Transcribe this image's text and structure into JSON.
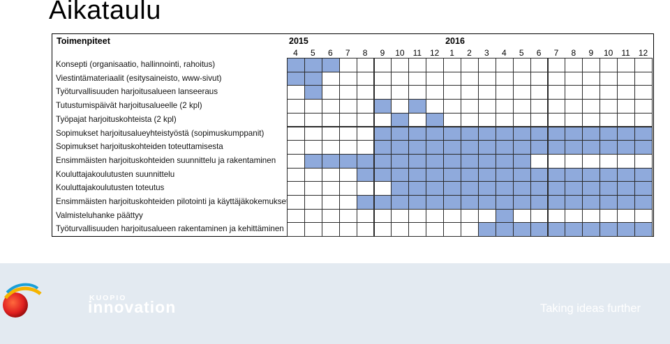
{
  "page": {
    "title": "Aikataulu"
  },
  "gantt": {
    "task_header": "Toimenpiteet",
    "years": [
      {
        "label": "2015",
        "start_month_index": 0
      },
      {
        "label": "2016",
        "start_month_index": 9
      }
    ],
    "months": [
      "4",
      "5",
      "6",
      "7",
      "8",
      "9",
      "10",
      "11",
      "12",
      "1",
      "2",
      "3",
      "4",
      "5",
      "6",
      "7",
      "8",
      "9",
      "10",
      "11",
      "12"
    ],
    "rows": [
      {
        "label": "Konsepti (organisaatio, hallinnointi, rahoitus)",
        "active": [
          0,
          1,
          2
        ]
      },
      {
        "label": "Viestintämateriaalit (esitysaineisto, www-sivut)",
        "active": [
          0,
          1
        ]
      },
      {
        "label": "Työturvallisuuden harjoitusalueen lanseeraus",
        "active": [
          1
        ]
      },
      {
        "label": "Tutustumispäivät harjoitusalueelle (2 kpl)",
        "active": [
          5,
          7
        ]
      },
      {
        "label": "Työpajat harjoituskohteista (2 kpl)",
        "active": [
          6,
          8
        ]
      },
      {
        "label": "Sopimukset harjoitusalueyhteistyöstä (sopimuskumppanit)",
        "active": [
          5,
          6,
          7,
          8,
          9,
          10,
          11,
          12,
          13,
          14,
          15,
          16,
          17,
          18,
          19,
          20
        ]
      },
      {
        "label": "Sopimukset harjoituskohteiden toteuttamisesta",
        "active": [
          5,
          6,
          7,
          8,
          9,
          10,
          11,
          12,
          13,
          14,
          15,
          16,
          17,
          18,
          19,
          20
        ]
      },
      {
        "label": "Ensimmäisten harjoituskohteiden suunnittelu ja rakentaminen",
        "active": [
          1,
          2,
          3,
          4,
          5,
          6,
          7,
          8,
          9,
          10,
          11,
          12,
          13
        ]
      },
      {
        "label": "Kouluttajakoulutusten suunnittelu",
        "active": [
          4,
          5,
          6,
          7,
          8,
          9,
          10,
          11,
          12,
          13,
          14,
          15,
          16,
          17,
          18,
          19,
          20
        ]
      },
      {
        "label": "Kouluttajakoulutusten toteutus",
        "active": [
          6,
          7,
          8,
          9,
          10,
          11,
          12,
          13,
          14,
          15,
          16,
          17,
          18,
          19,
          20
        ]
      },
      {
        "label": "Ensimmäisten harjoituskohteiden pilotointi ja käyttäjäkokemukset",
        "active": [
          4,
          5,
          6,
          7,
          8,
          9,
          10,
          11,
          12,
          13,
          14,
          15,
          16,
          17,
          18,
          19,
          20
        ]
      },
      {
        "label": "Valmisteluhanke päättyy",
        "active": [
          12
        ]
      },
      {
        "label": "Työturvallisuuden harjoitusalueen rakentaminen ja kehittäminen",
        "active": [
          11,
          12,
          13,
          14,
          15,
          16,
          17,
          18,
          19,
          20
        ]
      }
    ]
  },
  "footer": {
    "brand_top": "KUOPIO",
    "brand_name": "innovation",
    "tagline": "Taking ideas further",
    "logo_icon": "globe-logo-icon"
  }
}
